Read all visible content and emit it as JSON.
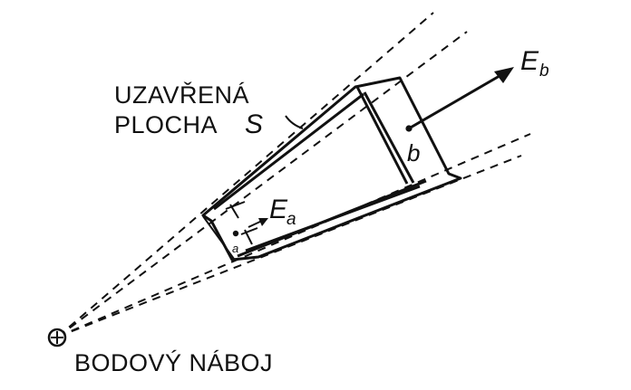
{
  "labels": {
    "surface_line1": "UZAVŘENÁ",
    "surface_line2": "PLOCHA",
    "surface_symbol": "S",
    "charge": "BODOVÝ NÁBOJ",
    "field_b_main": "E",
    "field_b_sub": "b",
    "field_a_main": "E",
    "field_a_sub": "a",
    "point_b": "b",
    "point_a": "a"
  },
  "charge_symbol": "⊕"
}
